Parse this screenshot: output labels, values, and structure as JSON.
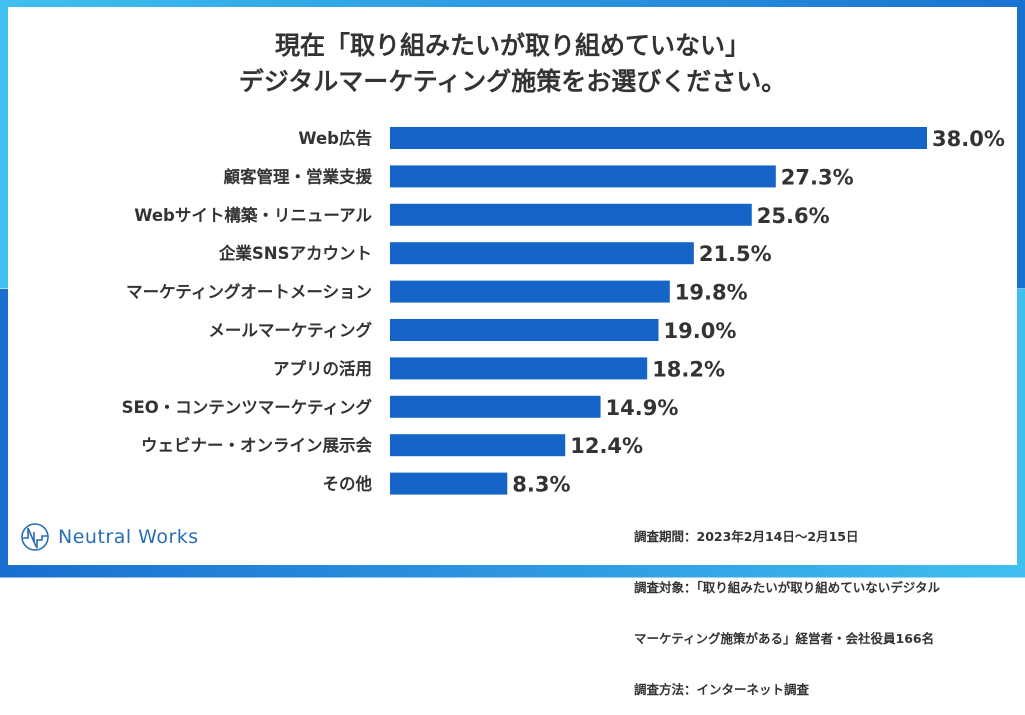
{
  "chart_data": {
    "type": "bar",
    "orientation": "horizontal",
    "title": "現在「取り組みたいが取り組めていない」\nデジタルマーケティング施策をお選びください。",
    "title_lines": [
      "現在「取り組みたいが取り組めていない」",
      "デジタルマーケティング施策をお選びください。"
    ],
    "categories": [
      "Web広告",
      "顧客管理・営業支援",
      "Webサイト構築・リニューアル",
      "企業SNSアカウント",
      "マーケティングオートメーション",
      "メールマーケティング",
      "アプリの活用",
      "SEO・コンテンツマーケティング",
      "ウェビナー・オンライン展示会",
      "その他"
    ],
    "values": [
      38.0,
      27.3,
      25.6,
      21.5,
      19.8,
      19.0,
      18.2,
      14.9,
      12.4,
      8.3
    ],
    "data_labels": [
      "38.0%",
      "27.3%",
      "25.6%",
      "21.5%",
      "19.8%",
      "19.0%",
      "18.2%",
      "14.9%",
      "12.4%",
      "8.3%"
    ],
    "unit": "%",
    "xlim": [
      0,
      38.0
    ],
    "grid": false,
    "bar_color": "#1565c8"
  },
  "note_lines": [
    "調査期間：2023年2月14日～2月15日",
    "調査対象：「取り組みたいが取り組めていないデジタル",
    "マーケティング施策がある」経営者・会社役員166名",
    "調査方法：インターネット調査"
  ],
  "logo": {
    "text": "Neutral Works",
    "color": "#2a6db8"
  }
}
